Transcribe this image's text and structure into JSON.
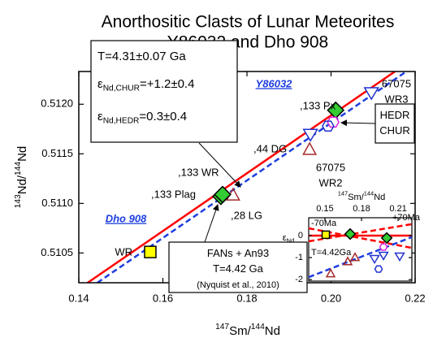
{
  "chart_data": [
    {
      "type": "scatter",
      "title": [
        "Anorthositic Clasts of Lunar Meteorites",
        "Y86032 and Dho 908"
      ],
      "xlabel": [
        {
          "text": "147",
          "shift": "sup"
        },
        {
          "text": "Sm/"
        },
        {
          "text": "144",
          "shift": "sup"
        },
        {
          "text": "Nd"
        }
      ],
      "ylabel": [
        {
          "text": "143",
          "shift": "sup"
        },
        {
          "text": "Nd/"
        },
        {
          "text": "144",
          "shift": "sup"
        },
        {
          "text": "Nd"
        }
      ],
      "xlim": [
        0.14,
        0.22
      ],
      "xticks": [
        0.14,
        0.16,
        0.18,
        {
          "value": 0.2,
          "label": "0.20"
        },
        0.22
      ],
      "ylim": [
        0.5102,
        0.51233
      ],
      "yticks": [
        0.5105,
        {
          "value": 0.511,
          "label": "0.5110"
        },
        0.5115,
        {
          "value": 0.512,
          "label": "0.5120"
        }
      ],
      "lines": [
        {
          "name": "Y86032",
          "color": "#ff0000",
          "dash": false,
          "x": [
            0.1421,
            0.2152
          ],
          "y": [
            0.5102,
            0.51233
          ]
        },
        {
          "name": "Dho 908",
          "color": "#1e3ee0",
          "dash": true,
          "x": [
            0.1444,
            0.2179
          ],
          "y": [
            0.5102,
            0.51233
          ]
        }
      ],
      "points": [
        {
          "x": 0.157,
          "y": 0.51051,
          "marker": "square",
          "color": "#000000",
          "fill": "#ffff00",
          "label": [
            "WR"
          ]
        },
        {
          "x": 0.1738,
          "y": 0.51107,
          "marker": "diamond",
          "color": "#000000",
          "fill": "#33cc33",
          "label": [
            ",133 Plag"
          ]
        },
        {
          "x": 0.1767,
          "y": 0.51108,
          "marker": "triangle-up",
          "color": "#a52a2a",
          "fill": "none",
          "label": [
            ",28 LG"
          ]
        },
        {
          "x": 0.1742,
          "y": 0.51109,
          "marker": "diamond",
          "color": "#000000",
          "fill": "#33cc33",
          "label": [
            ",133 WR"
          ]
        },
        {
          "x": 0.1949,
          "y": 0.51154,
          "marker": "triangle-up",
          "color": "#a52a2a",
          "fill": "none",
          "label": [
            ",44 DG"
          ]
        },
        {
          "x": 0.1951,
          "y": 0.5117,
          "marker": "triangle-down",
          "color": "#2233cc",
          "fill": "#ffffff",
          "label": [
            "67075",
            "WR2"
          ]
        },
        {
          "x": 0.2011,
          "y": 0.51194,
          "marker": "diamond",
          "color": "#000000",
          "fill": "#33cc33",
          "label": [
            ",133 Px"
          ]
        },
        {
          "x": 0.2005,
          "y": 0.51182,
          "marker": "hexagon",
          "color": "#dd22dd",
          "fill": "#ffffff"
        },
        {
          "x": 0.1993,
          "y": 0.51178,
          "marker": "hexagon",
          "color": "#2233cc",
          "fill": "none"
        },
        {
          "x": 0.2096,
          "y": 0.51212,
          "marker": "triangle-down",
          "color": "#2233cc",
          "fill": "#ffffff",
          "label": [
            "67075",
            "WR3"
          ]
        }
      ],
      "boxes": [
        [
          [
            {
              "text": "T=4.31±0.07 Ga"
            }
          ],
          [
            {
              "text": "ε"
            },
            {
              "text": "Nd,CHUR",
              "shift": "sub"
            },
            {
              "text": "=+1.2±0.4"
            }
          ],
          [
            {
              "text": "ε"
            },
            {
              "text": "Nd,HEDR",
              "shift": "sub"
            },
            {
              "text": "=0.3±0.4"
            }
          ]
        ],
        [
          [
            {
              "text": "FANs + An93"
            }
          ],
          [
            {
              "text": "T=4.42 Ga"
            }
          ],
          [
            {
              "text": "(Nyquist et al., 2010)"
            }
          ]
        ],
        [
          [
            {
              "text": "HEDR"
            }
          ],
          [
            {
              "text": "CHUR"
            }
          ]
        ]
      ]
    },
    {
      "type": "scatter",
      "xlabel": [
        {
          "text": "147",
          "shift": "sup"
        },
        {
          "text": "Sm/"
        },
        {
          "text": "144",
          "shift": "sup"
        },
        {
          "text": "Nd"
        }
      ],
      "ylabel": [
        {
          "text": "ε"
        },
        {
          "text": "Nd",
          "shift": "sub"
        }
      ],
      "xlim": [
        0.1367,
        0.2213
      ],
      "xticks": [
        0.15,
        0.18,
        0.21
      ],
      "ylim": [
        -2.07,
        0.81
      ],
      "yticks": [
        0,
        -1,
        -2
      ],
      "lines": [
        {
          "color": "#ff0000",
          "dash": false,
          "width": 2.5,
          "x": [
            0.1367,
            0.2213
          ],
          "y": [
            0,
            0
          ]
        },
        {
          "name": "+70Ma",
          "color": "#ff0000",
          "dash": true,
          "x": [
            0.1367,
            0.2213
          ],
          "y": [
            -0.26,
            0.52
          ]
        },
        {
          "name": "-70Ma",
          "color": "#ff0000",
          "dash": true,
          "x": [
            0.1367,
            0.2213
          ],
          "y": [
            0.33,
            -0.56
          ]
        },
        {
          "name": "T=4.42Ga",
          "color": "#1e3ee0",
          "dash": true,
          "x": [
            0.1367,
            0.2213
          ],
          "y": [
            -1.89,
            -0.07
          ]
        }
      ],
      "points": [
        {
          "x": 0.1507,
          "y": 0.04,
          "marker": "square",
          "color": "#000000",
          "fill": "#ffff00"
        },
        {
          "x": 0.1707,
          "y": 0.07,
          "marker": "diamond",
          "color": "#000000",
          "fill": "#33cc33"
        },
        {
          "x": 0.2007,
          "y": -0.11,
          "marker": "diamond",
          "color": "#000000",
          "fill": "#33cc33"
        },
        {
          "x": 0.1547,
          "y": -1.74,
          "marker": "triangle-up",
          "color": "#a52a2a",
          "fill": "none"
        },
        {
          "x": 0.1687,
          "y": -1.19,
          "marker": "triangle-up",
          "color": "#a52a2a",
          "fill": "none"
        },
        {
          "x": 0.1747,
          "y": -1.0,
          "marker": "triangle-up",
          "color": "#a52a2a",
          "fill": "none"
        },
        {
          "x": 0.1907,
          "y": -1.04,
          "marker": "triangle-down",
          "color": "#2233cc",
          "fill": "#ffffff"
        },
        {
          "x": 0.198,
          "y": -0.89,
          "marker": "triangle-down",
          "color": "#2233cc",
          "fill": "#ffffff"
        },
        {
          "x": 0.2113,
          "y": -0.93,
          "marker": "triangle-down",
          "color": "#2233cc",
          "fill": "#ffffff"
        },
        {
          "x": 0.198,
          "y": -0.52,
          "marker": "hexagon",
          "color": "#dd22dd",
          "fill": "#ffffff"
        },
        {
          "x": 0.194,
          "y": -1.52,
          "marker": "hexagon",
          "color": "#2233cc",
          "fill": "#ffffff"
        }
      ]
    }
  ]
}
